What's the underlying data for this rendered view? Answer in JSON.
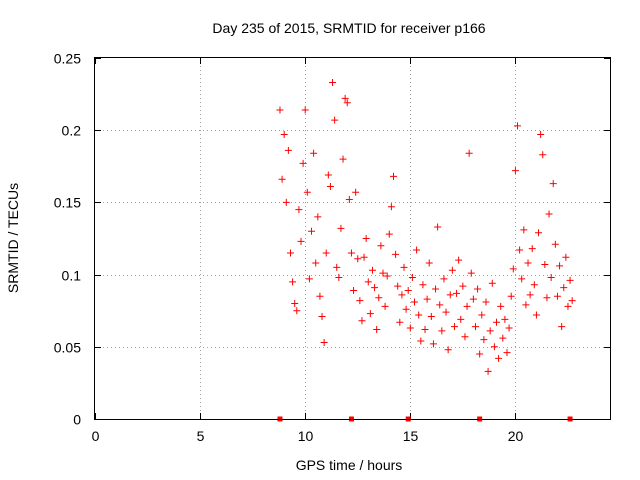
{
  "chart_data": {
    "type": "scatter",
    "title": "Day 235 of 2015, SRMTID for receiver p166",
    "xlabel": "GPS time / hours",
    "ylabel": "SRMTID / TECUs",
    "xlim": [
      0,
      24.5
    ],
    "ylim": [
      0,
      0.25
    ],
    "xticks": [
      0,
      5,
      10,
      15,
      20
    ],
    "xtick_labels": [
      "0",
      "5",
      "10",
      "15",
      "20"
    ],
    "yticks": [
      0,
      0.05,
      0.1,
      0.15,
      0.2,
      0.25
    ],
    "ytick_labels": [
      "0",
      "0.05",
      "0.1",
      "0.15",
      "0.2",
      "0.25"
    ],
    "grid": true,
    "marker": "+",
    "color": "#ff0000",
    "baseline_markers_x": [
      8.8,
      12.2,
      14.9,
      18.3,
      22.6
    ],
    "series": [
      {
        "name": "SRMTID",
        "points": [
          [
            8.8,
            0.214
          ],
          [
            8.9,
            0.166
          ],
          [
            9.0,
            0.197
          ],
          [
            9.1,
            0.15
          ],
          [
            9.2,
            0.186
          ],
          [
            9.3,
            0.115
          ],
          [
            9.4,
            0.095
          ],
          [
            9.5,
            0.08
          ],
          [
            9.6,
            0.075
          ],
          [
            9.7,
            0.145
          ],
          [
            9.8,
            0.123
          ],
          [
            9.9,
            0.177
          ],
          [
            10.0,
            0.214
          ],
          [
            10.1,
            0.157
          ],
          [
            10.2,
            0.097
          ],
          [
            10.3,
            0.13
          ],
          [
            10.4,
            0.184
          ],
          [
            10.5,
            0.108
          ],
          [
            10.6,
            0.14
          ],
          [
            10.7,
            0.085
          ],
          [
            10.8,
            0.071
          ],
          [
            10.9,
            0.053
          ],
          [
            11.0,
            0.115
          ],
          [
            11.1,
            0.169
          ],
          [
            11.2,
            0.161
          ],
          [
            11.3,
            0.233
          ],
          [
            11.4,
            0.207
          ],
          [
            11.5,
            0.105
          ],
          [
            11.6,
            0.098
          ],
          [
            11.7,
            0.132
          ],
          [
            11.8,
            0.18
          ],
          [
            11.9,
            0.222
          ],
          [
            12.0,
            0.219
          ],
          [
            12.1,
            0.152
          ],
          [
            12.2,
            0.115
          ],
          [
            12.3,
            0.089
          ],
          [
            12.4,
            0.157
          ],
          [
            12.5,
            0.111
          ],
          [
            12.6,
            0.082
          ],
          [
            12.7,
            0.068
          ],
          [
            12.8,
            0.112
          ],
          [
            12.9,
            0.125
          ],
          [
            13.0,
            0.095
          ],
          [
            13.1,
            0.073
          ],
          [
            13.2,
            0.103
          ],
          [
            13.3,
            0.091
          ],
          [
            13.4,
            0.062
          ],
          [
            13.5,
            0.084
          ],
          [
            13.6,
            0.12
          ],
          [
            13.7,
            0.101
          ],
          [
            13.8,
            0.078
          ],
          [
            13.9,
            0.099
          ],
          [
            14.0,
            0.128
          ],
          [
            14.1,
            0.147
          ],
          [
            14.2,
            0.168
          ],
          [
            14.3,
            0.114
          ],
          [
            14.4,
            0.092
          ],
          [
            14.5,
            0.067
          ],
          [
            14.6,
            0.086
          ],
          [
            14.7,
            0.105
          ],
          [
            14.8,
            0.076
          ],
          [
            14.9,
            0.089
          ],
          [
            15.0,
            0.063
          ],
          [
            15.1,
            0.098
          ],
          [
            15.2,
            0.081
          ],
          [
            15.3,
            0.117
          ],
          [
            15.4,
            0.072
          ],
          [
            15.5,
            0.054
          ],
          [
            15.6,
            0.093
          ],
          [
            15.7,
            0.062
          ],
          [
            15.8,
            0.083
          ],
          [
            15.9,
            0.108
          ],
          [
            16.0,
            0.071
          ],
          [
            16.1,
            0.052
          ],
          [
            16.2,
            0.09
          ],
          [
            16.3,
            0.133
          ],
          [
            16.4,
            0.079
          ],
          [
            16.5,
            0.061
          ],
          [
            16.6,
            0.097
          ],
          [
            16.7,
            0.074
          ],
          [
            16.8,
            0.048
          ],
          [
            16.9,
            0.086
          ],
          [
            17.0,
            0.103
          ],
          [
            17.1,
            0.064
          ],
          [
            17.2,
            0.087
          ],
          [
            17.3,
            0.11
          ],
          [
            17.4,
            0.069
          ],
          [
            17.5,
            0.092
          ],
          [
            17.6,
            0.057
          ],
          [
            17.7,
            0.078
          ],
          [
            17.8,
            0.184
          ],
          [
            17.9,
            0.101
          ],
          [
            18.0,
            0.083
          ],
          [
            18.1,
            0.064
          ],
          [
            18.2,
            0.09
          ],
          [
            18.3,
            0.045
          ],
          [
            18.4,
            0.072
          ],
          [
            18.5,
            0.055
          ],
          [
            18.6,
            0.081
          ],
          [
            18.7,
            0.033
          ],
          [
            18.8,
            0.061
          ],
          [
            18.9,
            0.094
          ],
          [
            19.0,
            0.05
          ],
          [
            19.1,
            0.067
          ],
          [
            19.2,
            0.042
          ],
          [
            19.3,
            0.078
          ],
          [
            19.4,
            0.056
          ],
          [
            19.5,
            0.069
          ],
          [
            19.6,
            0.046
          ],
          [
            19.7,
            0.063
          ],
          [
            19.8,
            0.085
          ],
          [
            19.9,
            0.104
          ],
          [
            20.0,
            0.172
          ],
          [
            20.1,
            0.203
          ],
          [
            20.2,
            0.117
          ],
          [
            20.3,
            0.097
          ],
          [
            20.4,
            0.131
          ],
          [
            20.5,
            0.079
          ],
          [
            20.6,
            0.108
          ],
          [
            20.7,
            0.086
          ],
          [
            20.8,
            0.118
          ],
          [
            20.9,
            0.093
          ],
          [
            21.0,
            0.072
          ],
          [
            21.1,
            0.129
          ],
          [
            21.2,
            0.197
          ],
          [
            21.3,
            0.183
          ],
          [
            21.4,
            0.107
          ],
          [
            21.5,
            0.084
          ],
          [
            21.6,
            0.142
          ],
          [
            21.7,
            0.098
          ],
          [
            21.8,
            0.163
          ],
          [
            21.9,
            0.121
          ],
          [
            22.0,
            0.085
          ],
          [
            22.1,
            0.106
          ],
          [
            22.2,
            0.064
          ],
          [
            22.3,
            0.091
          ],
          [
            22.4,
            0.112
          ],
          [
            22.5,
            0.078
          ],
          [
            22.6,
            0.096
          ],
          [
            22.7,
            0.082
          ]
        ]
      }
    ]
  }
}
